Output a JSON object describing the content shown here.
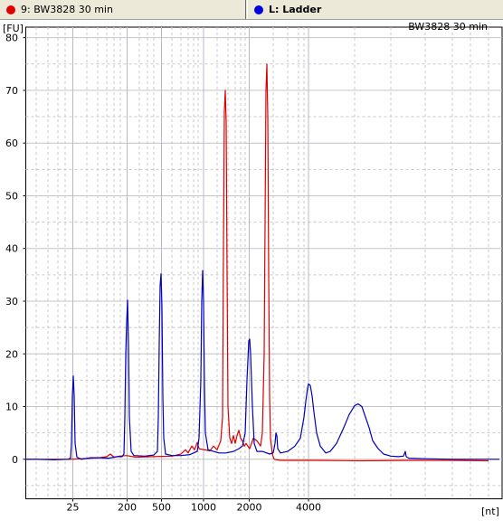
{
  "tabs": [
    {
      "label": "9: BW3828 30 min",
      "color": "#e00000"
    },
    {
      "label": "L: Ladder",
      "color": "#0000e0"
    }
  ],
  "chart_data": {
    "type": "line",
    "title": "BW3828 30 min",
    "ylabel": "[FU]",
    "xlabel": "[nt]",
    "ylim": [
      -7.5,
      82
    ],
    "xlim": [
      0,
      556
    ],
    "yticks": [
      0,
      10,
      20,
      30,
      40,
      50,
      60,
      70,
      80
    ],
    "xticks": [
      {
        "label": "25",
        "value": 80.5
      },
      {
        "label": "200",
        "value": 140.5
      },
      {
        "label": "500",
        "value": 178.5
      },
      {
        "label": "1000",
        "value": 225
      },
      {
        "label": "2000",
        "value": 275.5
      },
      {
        "label": "4000",
        "value": 341
      }
    ],
    "grid": true,
    "series": [
      {
        "name": "9: BW3828 30 min",
        "color": "#dd0000",
        "points": [
          [
            28,
            0
          ],
          [
            60,
            0
          ],
          [
            78,
            0
          ],
          [
            90,
            0.1
          ],
          [
            110,
            0.3
          ],
          [
            118,
            0.5
          ],
          [
            122,
            1.0
          ],
          [
            126,
            0.4
          ],
          [
            132,
            0.6
          ],
          [
            140,
            0.7
          ],
          [
            150,
            0.4
          ],
          [
            170,
            0.5
          ],
          [
            190,
            0.6
          ],
          [
            200,
            1.0
          ],
          [
            205,
            1.8
          ],
          [
            208,
            1.2
          ],
          [
            212,
            2.5
          ],
          [
            215,
            1.8
          ],
          [
            218,
            3.2
          ],
          [
            220,
            2.0
          ],
          [
            226,
            1.8
          ],
          [
            232,
            1.6
          ],
          [
            236,
            2.5
          ],
          [
            240,
            1.8
          ],
          [
            244,
            3.5
          ],
          [
            246,
            8
          ],
          [
            247,
            40
          ],
          [
            248,
            66
          ],
          [
            249,
            70
          ],
          [
            250,
            64
          ],
          [
            251,
            35
          ],
          [
            252,
            10
          ],
          [
            254,
            4
          ],
          [
            256,
            3
          ],
          [
            258,
            4.5
          ],
          [
            260,
            3
          ],
          [
            262,
            4.5
          ],
          [
            264,
            5.5
          ],
          [
            266,
            4
          ],
          [
            268,
            3.5
          ],
          [
            270,
            2.5
          ],
          [
            272,
            3
          ],
          [
            276,
            2
          ],
          [
            280,
            4
          ],
          [
            284,
            3.5
          ],
          [
            288,
            2.5
          ],
          [
            290,
            5
          ],
          [
            292,
            20
          ],
          [
            293,
            45
          ],
          [
            294,
            70
          ],
          [
            295,
            75
          ],
          [
            296,
            65
          ],
          [
            297,
            35
          ],
          [
            298,
            12
          ],
          [
            299,
            4
          ],
          [
            301,
            1
          ],
          [
            303,
            0
          ],
          [
            310,
            -0.2
          ],
          [
            350,
            -0.2
          ],
          [
            400,
            -0.3
          ],
          [
            450,
            -0.2
          ],
          [
            500,
            -0.2
          ],
          [
            540,
            -0.3
          ]
        ]
      },
      {
        "name": "L: Ladder",
        "color": "#0000bb",
        "points": [
          [
            28,
            0
          ],
          [
            40,
            0
          ],
          [
            60,
            -0.1
          ],
          [
            75,
            0
          ],
          [
            78,
            0.2
          ],
          [
            79,
            3
          ],
          [
            80,
            12
          ],
          [
            81,
            15.8
          ],
          [
            82,
            12
          ],
          [
            83,
            3
          ],
          [
            85,
            0.4
          ],
          [
            90,
            0
          ],
          [
            100,
            0.3
          ],
          [
            110,
            0.3
          ],
          [
            120,
            0.2
          ],
          [
            130,
            0.5
          ],
          [
            135,
            0.5
          ],
          [
            137,
            1
          ],
          [
            138,
            8
          ],
          [
            139,
            20
          ],
          [
            140,
            26
          ],
          [
            141,
            30.2
          ],
          [
            142,
            22
          ],
          [
            143,
            8
          ],
          [
            145,
            1.5
          ],
          [
            148,
            0.7
          ],
          [
            160,
            0.6
          ],
          [
            170,
            0.8
          ],
          [
            174,
            1.5
          ],
          [
            175,
            8
          ],
          [
            176,
            22
          ],
          [
            177,
            33
          ],
          [
            178,
            35.2
          ],
          [
            179,
            29
          ],
          [
            180,
            12
          ],
          [
            181,
            4
          ],
          [
            183,
            1
          ],
          [
            190,
            0.7
          ],
          [
            200,
            0.7
          ],
          [
            210,
            0.9
          ],
          [
            218,
            1.5
          ],
          [
            220,
            4
          ],
          [
            222,
            15
          ],
          [
            223,
            30
          ],
          [
            224,
            35.8
          ],
          [
            225,
            30
          ],
          [
            226,
            14
          ],
          [
            227,
            5
          ],
          [
            230,
            1.8
          ],
          [
            236,
            1.5
          ],
          [
            242,
            1.2
          ],
          [
            250,
            1.2
          ],
          [
            258,
            1.5
          ],
          [
            264,
            2
          ],
          [
            268,
            2.5
          ],
          [
            271,
            5
          ],
          [
            273,
            15
          ],
          [
            275,
            22.5
          ],
          [
            276,
            22.8
          ],
          [
            277,
            20
          ],
          [
            279,
            10
          ],
          [
            281,
            3
          ],
          [
            284,
            1.5
          ],
          [
            290,
            1.5
          ],
          [
            298,
            1.0
          ],
          [
            302,
            1.2
          ],
          [
            304,
            3
          ],
          [
            305,
            5
          ],
          [
            306,
            4.5
          ],
          [
            307,
            2
          ],
          [
            310,
            1.2
          ],
          [
            318,
            1.5
          ],
          [
            326,
            2.5
          ],
          [
            332,
            4
          ],
          [
            336,
            8
          ],
          [
            338,
            11
          ],
          [
            340,
            13.5
          ],
          [
            341,
            14.3
          ],
          [
            343,
            14
          ],
          [
            345,
            12
          ],
          [
            347,
            9
          ],
          [
            350,
            5
          ],
          [
            354,
            2.5
          ],
          [
            360,
            1.2
          ],
          [
            365,
            1.5
          ],
          [
            372,
            3
          ],
          [
            380,
            6
          ],
          [
            386,
            8.5
          ],
          [
            392,
            10.2
          ],
          [
            396,
            10.5
          ],
          [
            400,
            10
          ],
          [
            404,
            8
          ],
          [
            408,
            6
          ],
          [
            412,
            3.5
          ],
          [
            418,
            2
          ],
          [
            424,
            1.0
          ],
          [
            432,
            0.6
          ],
          [
            440,
            0.5
          ],
          [
            446,
            0.6
          ],
          [
            448,
            1.5
          ],
          [
            449,
            0.5
          ],
          [
            452,
            0.2
          ],
          [
            470,
            0.1
          ],
          [
            500,
            0
          ],
          [
            530,
            0
          ],
          [
            552,
            0
          ]
        ]
      }
    ]
  }
}
